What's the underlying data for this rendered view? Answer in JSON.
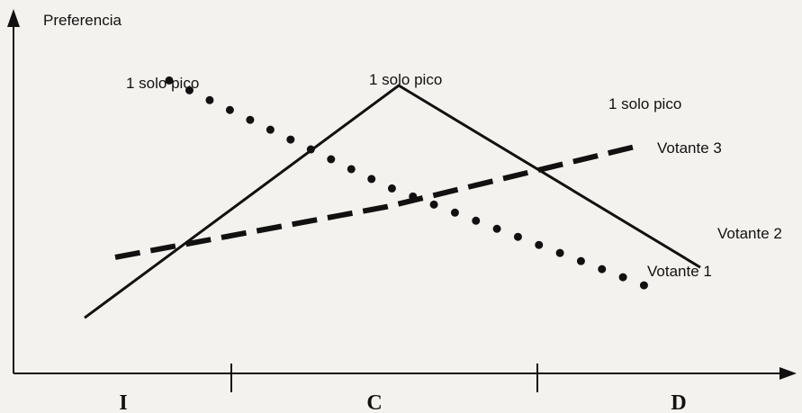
{
  "chart_data": {
    "type": "line",
    "ylabel": "Preferencia",
    "xlabel": "",
    "categories": [
      "I",
      "C",
      "D"
    ],
    "series": [
      {
        "name": "Votante 1",
        "style": "dotted",
        "values": [
          2.9,
          1.85,
          0.85
        ]
      },
      {
        "name": "Votante 2",
        "style": "solid",
        "values": [
          0.55,
          2.85,
          1.05
        ]
      },
      {
        "name": "Votante 3",
        "style": "dashed",
        "values": [
          1.15,
          1.65,
          2.25
        ]
      }
    ],
    "annotations": [
      {
        "text": "1 solo pico",
        "series": "Votante 1"
      },
      {
        "text": "1 solo pico",
        "series": "Votante 2"
      },
      {
        "text": "1 solo pico",
        "series": "Votante 3"
      }
    ],
    "ylim": [
      0,
      3.5
    ],
    "grid": false,
    "legend": "series labels at line ends"
  }
}
